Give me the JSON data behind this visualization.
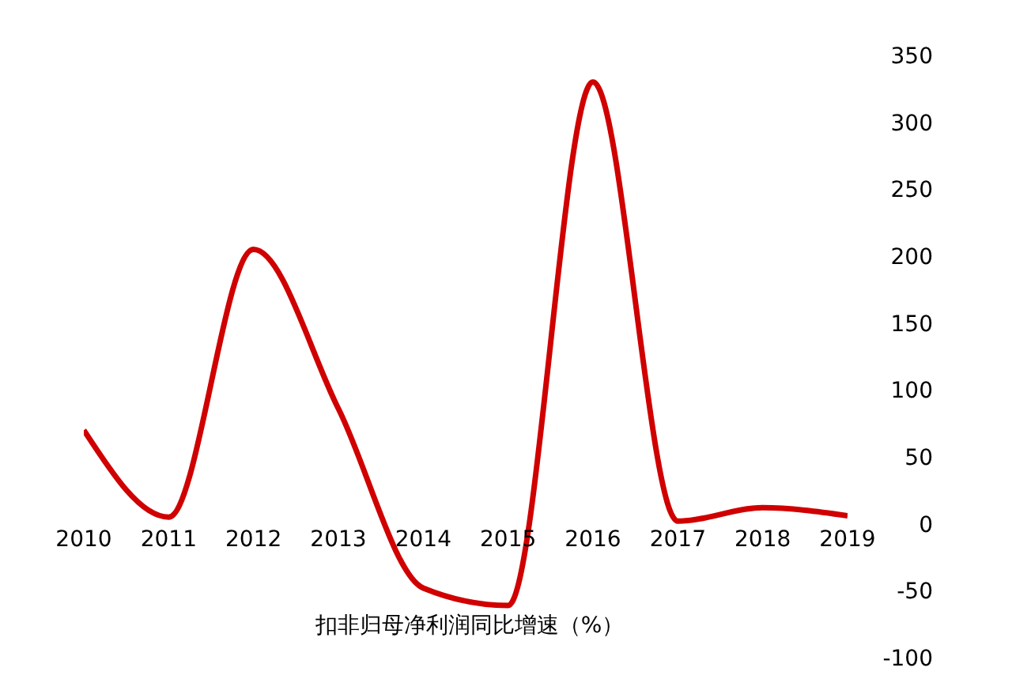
{
  "chart_data": {
    "type": "line",
    "xlabel": "扣非归母净利润同比增速（%）",
    "categories": [
      "2010",
      "2011",
      "2012",
      "2013",
      "2014",
      "2015",
      "2016",
      "2017",
      "2018",
      "2019"
    ],
    "series": [
      {
        "color": "#d00000",
        "values": [
          70,
          5,
          205,
          86,
          -48,
          -61,
          330,
          2,
          12,
          6
        ]
      }
    ],
    "ylim": [
      -100,
      350
    ],
    "yticks": [
      -100,
      -50,
      0,
      50,
      100,
      150,
      200,
      250,
      300,
      350
    ],
    "grid": false,
    "legend": false,
    "marker": "none",
    "line_style": "solid"
  }
}
